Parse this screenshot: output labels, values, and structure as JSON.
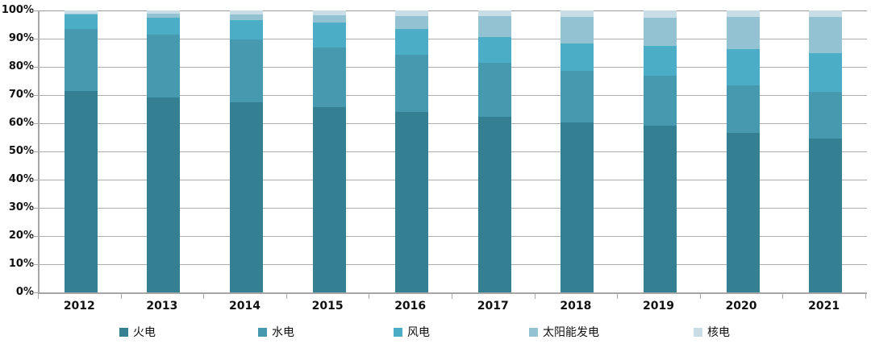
{
  "chart_data": {
    "type": "bar",
    "subtype": "stacked-100",
    "title": "",
    "xlabel": "",
    "ylabel": "",
    "ylim": [
      0,
      100
    ],
    "grid": true,
    "legend_position": "bottom",
    "categories": [
      "2012",
      "2013",
      "2014",
      "2015",
      "2016",
      "2017",
      "2018",
      "2019",
      "2020",
      "2021"
    ],
    "ytick_labels": [
      "0%",
      "10%",
      "20%",
      "30%",
      "40%",
      "50%",
      "60%",
      "70%",
      "80%",
      "90%",
      "100%"
    ],
    "series": [
      {
        "name": "火电",
        "color": "#357F92",
        "values": [
          71.5,
          69.2,
          67.5,
          65.8,
          64.0,
          62.2,
          60.2,
          59.2,
          56.6,
          54.6
        ]
      },
      {
        "name": "水电",
        "color": "#4699AE",
        "values": [
          21.8,
          22.3,
          22.1,
          21.2,
          20.3,
          19.2,
          18.5,
          17.8,
          16.8,
          16.5
        ]
      },
      {
        "name": "风电",
        "color": "#4CAEC6",
        "values": [
          5.3,
          6.0,
          7.0,
          8.6,
          9.1,
          9.1,
          9.7,
          10.4,
          12.8,
          13.8
        ]
      },
      {
        "name": "太阳能发电",
        "color": "#93C3D3",
        "values": [
          0.3,
          1.3,
          1.9,
          2.8,
          4.6,
          7.4,
          9.2,
          10.1,
          11.5,
          12.9
        ]
      },
      {
        "name": "核电",
        "color": "#C8DDE6",
        "values": [
          1.1,
          1.2,
          1.5,
          1.6,
          2.0,
          2.1,
          2.4,
          2.5,
          2.3,
          2.2
        ]
      }
    ],
    "colors": {
      "gridline": "#ADADAD",
      "axis": "#A6A6A6",
      "text": "#111111",
      "background": "#FFFFFF"
    }
  }
}
